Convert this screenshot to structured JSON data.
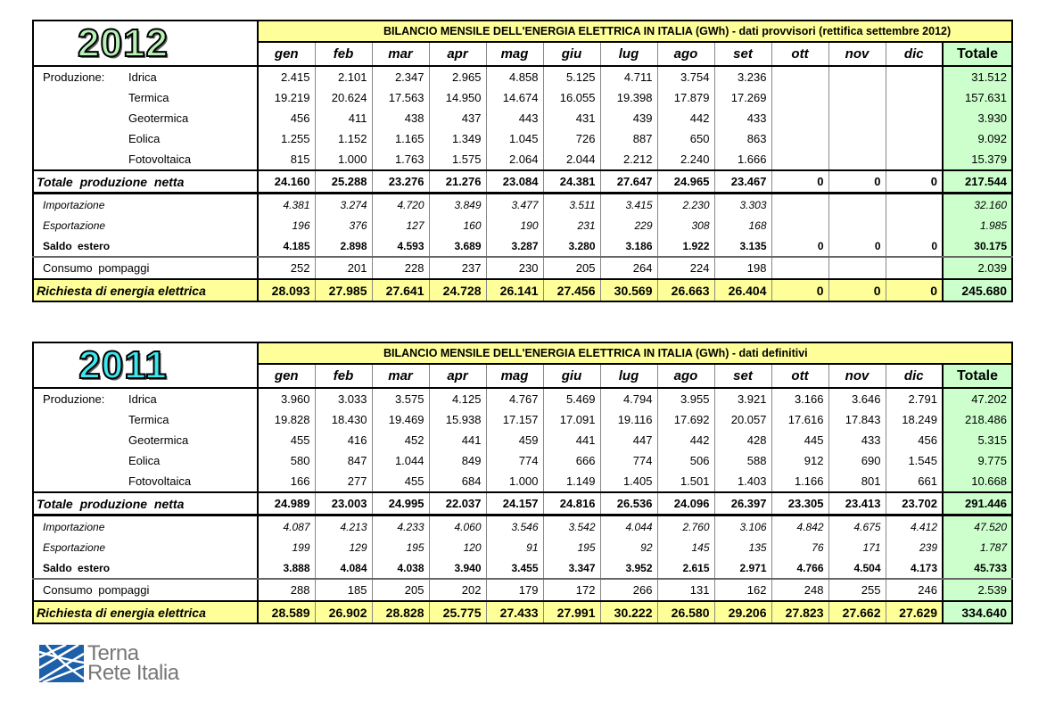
{
  "months": [
    "gen",
    "feb",
    "mar",
    "apr",
    "mag",
    "giu",
    "lug",
    "ago",
    "set",
    "ott",
    "nov",
    "dic"
  ],
  "totale_label": "Totale",
  "group_label": "Produzione:",
  "colors": {
    "banner": "#ffff99",
    "totale": "#ccffcc",
    "year_2012": "#b8f0b8",
    "year_2011": "#3ee6ee"
  },
  "tables": [
    {
      "year": "2012",
      "title": "BILANCIO MENSILE DELL'ENERGIA ELETTRICA IN ITALIA  (GWh)  -  dati provvisori  (rettifica settembre 2012)",
      "rows": [
        {
          "kind": "prod",
          "label": "Idrica",
          "values": [
            "2.415",
            "2.101",
            "2.347",
            "2.965",
            "4.858",
            "5.125",
            "4.711",
            "3.754",
            "3.236",
            "",
            "",
            "",
            "31.512"
          ]
        },
        {
          "kind": "prod",
          "label": "Termica",
          "values": [
            "19.219",
            "20.624",
            "17.563",
            "14.950",
            "14.674",
            "16.055",
            "19.398",
            "17.879",
            "17.269",
            "",
            "",
            "",
            "157.631"
          ]
        },
        {
          "kind": "prod",
          "label": "Geotermica",
          "values": [
            "456",
            "411",
            "438",
            "437",
            "443",
            "431",
            "439",
            "442",
            "433",
            "",
            "",
            "",
            "3.930"
          ]
        },
        {
          "kind": "prod",
          "label": "Eolica",
          "values": [
            "1.255",
            "1.152",
            "1.165",
            "1.349",
            "1.045",
            "726",
            "887",
            "650",
            "863",
            "",
            "",
            "",
            "9.092"
          ]
        },
        {
          "kind": "prod",
          "label": "Fotovoltaica",
          "values": [
            "815",
            "1.000",
            "1.763",
            "1.575",
            "2.064",
            "2.044",
            "2.212",
            "2.240",
            "1.666",
            "",
            "",
            "",
            "15.379"
          ]
        },
        {
          "kind": "total",
          "label": "Totale  produzione  netta",
          "values": [
            "24.160",
            "25.288",
            "23.276",
            "21.276",
            "23.084",
            "24.381",
            "27.647",
            "24.965",
            "23.467",
            "0",
            "0",
            "0",
            "217.544"
          ]
        },
        {
          "kind": "import",
          "label": "Importazione",
          "values": [
            "4.381",
            "3.274",
            "4.720",
            "3.849",
            "3.477",
            "3.511",
            "3.415",
            "2.230",
            "3.303",
            "",
            "",
            "",
            "32.160"
          ]
        },
        {
          "kind": "import",
          "label": "Esportazione",
          "values": [
            "196",
            "376",
            "127",
            "160",
            "190",
            "231",
            "229",
            "308",
            "168",
            "",
            "",
            "",
            "1.985"
          ]
        },
        {
          "kind": "saldo",
          "label": "Saldo  estero",
          "values": [
            "4.185",
            "2.898",
            "4.593",
            "3.689",
            "3.287",
            "3.280",
            "3.186",
            "1.922",
            "3.135",
            "0",
            "0",
            "0",
            "30.175"
          ]
        },
        {
          "kind": "consumo",
          "label": "Consumo  pompaggi",
          "values": [
            "252",
            "201",
            "228",
            "237",
            "230",
            "205",
            "264",
            "224",
            "198",
            "",
            "",
            "",
            "2.039"
          ]
        },
        {
          "kind": "richiesta",
          "label": "Richiesta di energia elettrica",
          "values": [
            "28.093",
            "27.985",
            "27.641",
            "24.728",
            "26.141",
            "27.456",
            "30.569",
            "26.663",
            "26.404",
            "0",
            "0",
            "0",
            "245.680"
          ]
        }
      ]
    },
    {
      "year": "2011",
      "title": "BILANCIO MENSILE DELL'ENERGIA ELETTRICA IN ITALIA  (GWh)  -  dati definitivi",
      "rows": [
        {
          "kind": "prod",
          "label": "Idrica",
          "values": [
            "3.960",
            "3.033",
            "3.575",
            "4.125",
            "4.767",
            "5.469",
            "4.794",
            "3.955",
            "3.921",
            "3.166",
            "3.646",
            "2.791",
            "47.202"
          ]
        },
        {
          "kind": "prod",
          "label": "Termica",
          "values": [
            "19.828",
            "18.430",
            "19.469",
            "15.938",
            "17.157",
            "17.091",
            "19.116",
            "17.692",
            "20.057",
            "17.616",
            "17.843",
            "18.249",
            "218.486"
          ]
        },
        {
          "kind": "prod",
          "label": "Geotermica",
          "values": [
            "455",
            "416",
            "452",
            "441",
            "459",
            "441",
            "447",
            "442",
            "428",
            "445",
            "433",
            "456",
            "5.315"
          ]
        },
        {
          "kind": "prod",
          "label": "Eolica",
          "values": [
            "580",
            "847",
            "1.044",
            "849",
            "774",
            "666",
            "774",
            "506",
            "588",
            "912",
            "690",
            "1.545",
            "9.775"
          ]
        },
        {
          "kind": "prod",
          "label": "Fotovoltaica",
          "values": [
            "166",
            "277",
            "455",
            "684",
            "1.000",
            "1.149",
            "1.405",
            "1.501",
            "1.403",
            "1.166",
            "801",
            "661",
            "10.668"
          ]
        },
        {
          "kind": "total",
          "label": "Totale  produzione  netta",
          "values": [
            "24.989",
            "23.003",
            "24.995",
            "22.037",
            "24.157",
            "24.816",
            "26.536",
            "24.096",
            "26.397",
            "23.305",
            "23.413",
            "23.702",
            "291.446"
          ]
        },
        {
          "kind": "import",
          "label": "Importazione",
          "values": [
            "4.087",
            "4.213",
            "4.233",
            "4.060",
            "3.546",
            "3.542",
            "4.044",
            "2.760",
            "3.106",
            "4.842",
            "4.675",
            "4.412",
            "47.520"
          ]
        },
        {
          "kind": "import",
          "label": "Esportazione",
          "values": [
            "199",
            "129",
            "195",
            "120",
            "91",
            "195",
            "92",
            "145",
            "135",
            "76",
            "171",
            "239",
            "1.787"
          ]
        },
        {
          "kind": "saldo",
          "label": "Saldo  estero",
          "values": [
            "3.888",
            "4.084",
            "4.038",
            "3.940",
            "3.455",
            "3.347",
            "3.952",
            "2.615",
            "2.971",
            "4.766",
            "4.504",
            "4.173",
            "45.733"
          ]
        },
        {
          "kind": "consumo",
          "label": "Consumo  pompaggi",
          "values": [
            "288",
            "185",
            "205",
            "202",
            "179",
            "172",
            "266",
            "131",
            "162",
            "248",
            "255",
            "246",
            "2.539"
          ]
        },
        {
          "kind": "richiesta",
          "label": "Richiesta di energia elettrica",
          "values": [
            "28.589",
            "26.902",
            "28.828",
            "25.775",
            "27.433",
            "27.991",
            "30.222",
            "26.580",
            "29.206",
            "27.823",
            "27.662",
            "27.629",
            "334.640"
          ]
        }
      ]
    }
  ],
  "logo": {
    "line1": "Terna",
    "line2": "Rete Italia"
  }
}
